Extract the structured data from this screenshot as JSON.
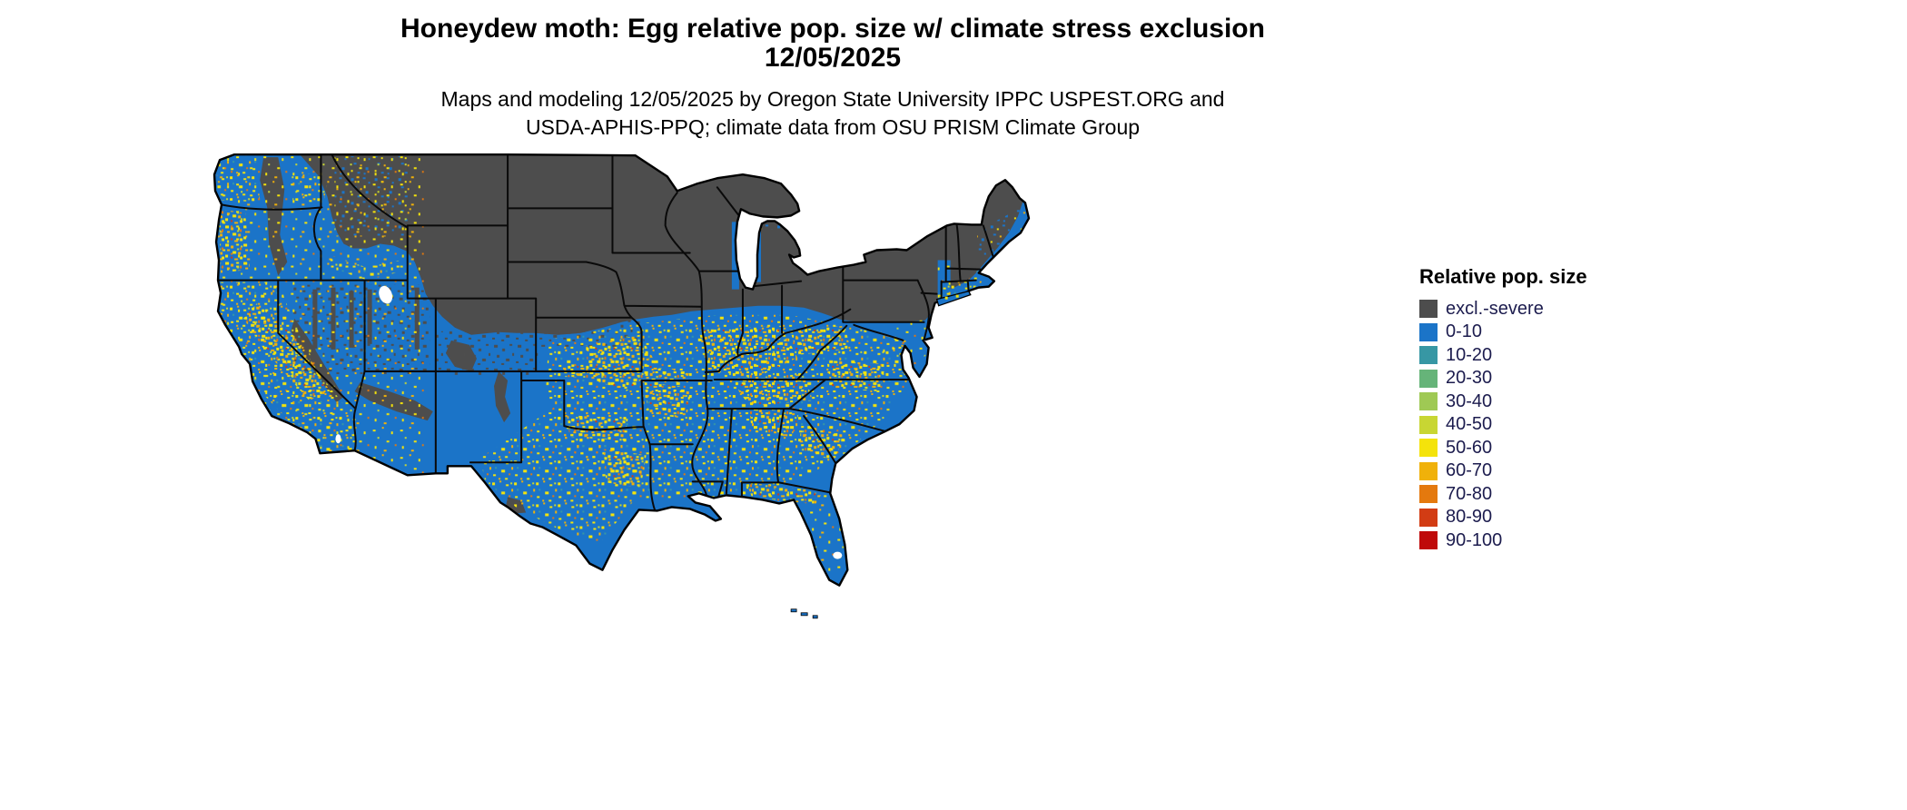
{
  "page": {
    "background": "#ffffff"
  },
  "header": {
    "title_line1": "Honeydew moth: Egg relative pop. size w/ climate stress exclusion",
    "title_line2": "12/05/2025",
    "subtitle_line1": "Maps and modeling 12/05/2025 by Oregon State University IPPC USPEST.ORG and",
    "subtitle_line2": "USDA-APHIS-PPQ; climate data from OSU PRISM Climate Group"
  },
  "legend": {
    "title": "Relative pop. size",
    "text_color": "#1c1c4e",
    "items": [
      {
        "label": "excl.-severe",
        "color": "#4D4D4D"
      },
      {
        "label": "0-10",
        "color": "#1B74C8"
      },
      {
        "label": "10-20",
        "color": "#3797A4"
      },
      {
        "label": "20-30",
        "color": "#66B479"
      },
      {
        "label": "30-40",
        "color": "#9FC954"
      },
      {
        "label": "40-50",
        "color": "#C8D633"
      },
      {
        "label": "50-60",
        "color": "#F4E30B"
      },
      {
        "label": "60-70",
        "color": "#F0B10A"
      },
      {
        "label": "70-80",
        "color": "#E4790E"
      },
      {
        "label": "80-90",
        "color": "#D23C14"
      },
      {
        "label": "90-100",
        "color": "#BF0A0A"
      }
    ]
  },
  "map": {
    "region": "Continental United States",
    "excluded_region_color": "#4D4D4D",
    "base_population_color": "#1B74C8",
    "state_border_color": "#000000"
  }
}
